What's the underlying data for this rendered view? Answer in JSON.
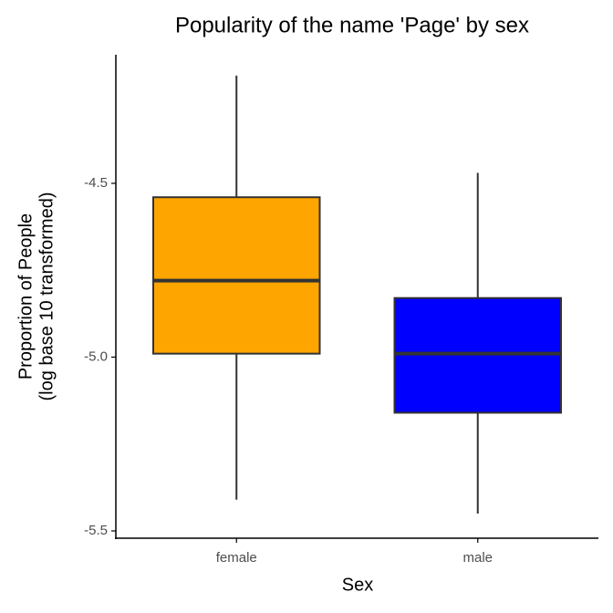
{
  "chart_data": {
    "type": "box",
    "title": "Popularity of the name 'Page' by sex",
    "xlabel": "Sex",
    "ylabel": [
      "Proportion of People",
      "(log base 10 transformed)"
    ],
    "categories": [
      "female",
      "male"
    ],
    "colors": [
      "#FFA500",
      "#0000FF"
    ],
    "boxes": [
      {
        "min": -5.41,
        "q1": -4.99,
        "median": -4.78,
        "q3": -4.54,
        "max": -4.19
      },
      {
        "min": -5.45,
        "q1": -5.16,
        "median": -4.99,
        "q3": -4.83,
        "max": -4.47
      }
    ],
    "ylim": [
      -5.521,
      -4.13
    ],
    "yticks": [
      -4.5,
      {
        "value": -5,
        "label": "-5.0"
      },
      -5.5
    ],
    "grid": false
  }
}
